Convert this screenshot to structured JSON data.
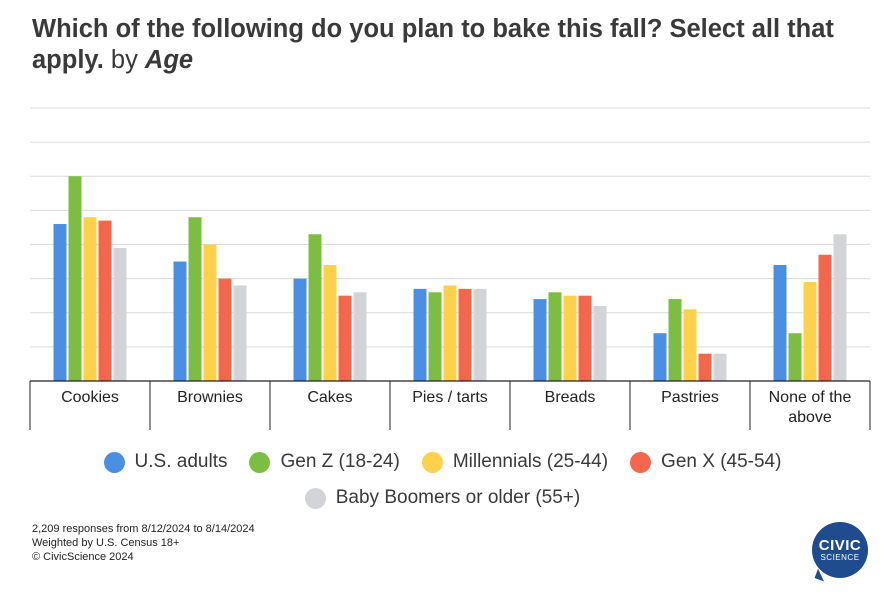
{
  "header": {
    "question": "Which of the following do you plan to bake this fall? Select all that apply.",
    "by": "by",
    "dimension": "Age"
  },
  "colors": {
    "us_adults": "#4a90e2",
    "gen_z": "#7cbd42",
    "millennials": "#fdd14a",
    "gen_x": "#f4674c",
    "boomers": "#d3d4d8",
    "grid": "#dcdcdc",
    "axis": "#222222"
  },
  "chart_data": {
    "type": "bar",
    "title": "Which of the following do you plan to bake this fall? Select all that apply. by Age",
    "categories": [
      "Cookies",
      "Brownies",
      "Cakes",
      "Pies / tarts",
      "Breads",
      "Pastries",
      "None of the above"
    ],
    "ylim": [
      0,
      80
    ],
    "gridlines": 8,
    "grid": true,
    "legend_position": "bottom",
    "series": [
      {
        "name": "U.S. adults",
        "color_key": "us_adults",
        "values": [
          46,
          35,
          30,
          27,
          24,
          14,
          34
        ]
      },
      {
        "name": "Gen Z (18-24)",
        "color_key": "gen_z",
        "values": [
          60,
          48,
          43,
          26,
          26,
          24,
          14
        ]
      },
      {
        "name": "Millennials (25-44)",
        "color_key": "millennials",
        "values": [
          48,
          40,
          34,
          28,
          25,
          21,
          29
        ]
      },
      {
        "name": "Gen X (45-54)",
        "color_key": "gen_x",
        "values": [
          47,
          30,
          25,
          27,
          25,
          8,
          37
        ]
      },
      {
        "name": "Baby Boomers or older (55+)",
        "color_key": "boomers",
        "values": [
          39,
          28,
          26,
          27,
          22,
          8,
          43
        ]
      }
    ]
  },
  "footnotes": {
    "responses": "2,209 responses from 8/12/2024 to 8/14/2024",
    "weighting": "Weighted by U.S. Census 18+",
    "copyright": "© CivicScience 2024"
  },
  "logo": {
    "line1": "CIVIC",
    "line2": "SCIENCE"
  }
}
